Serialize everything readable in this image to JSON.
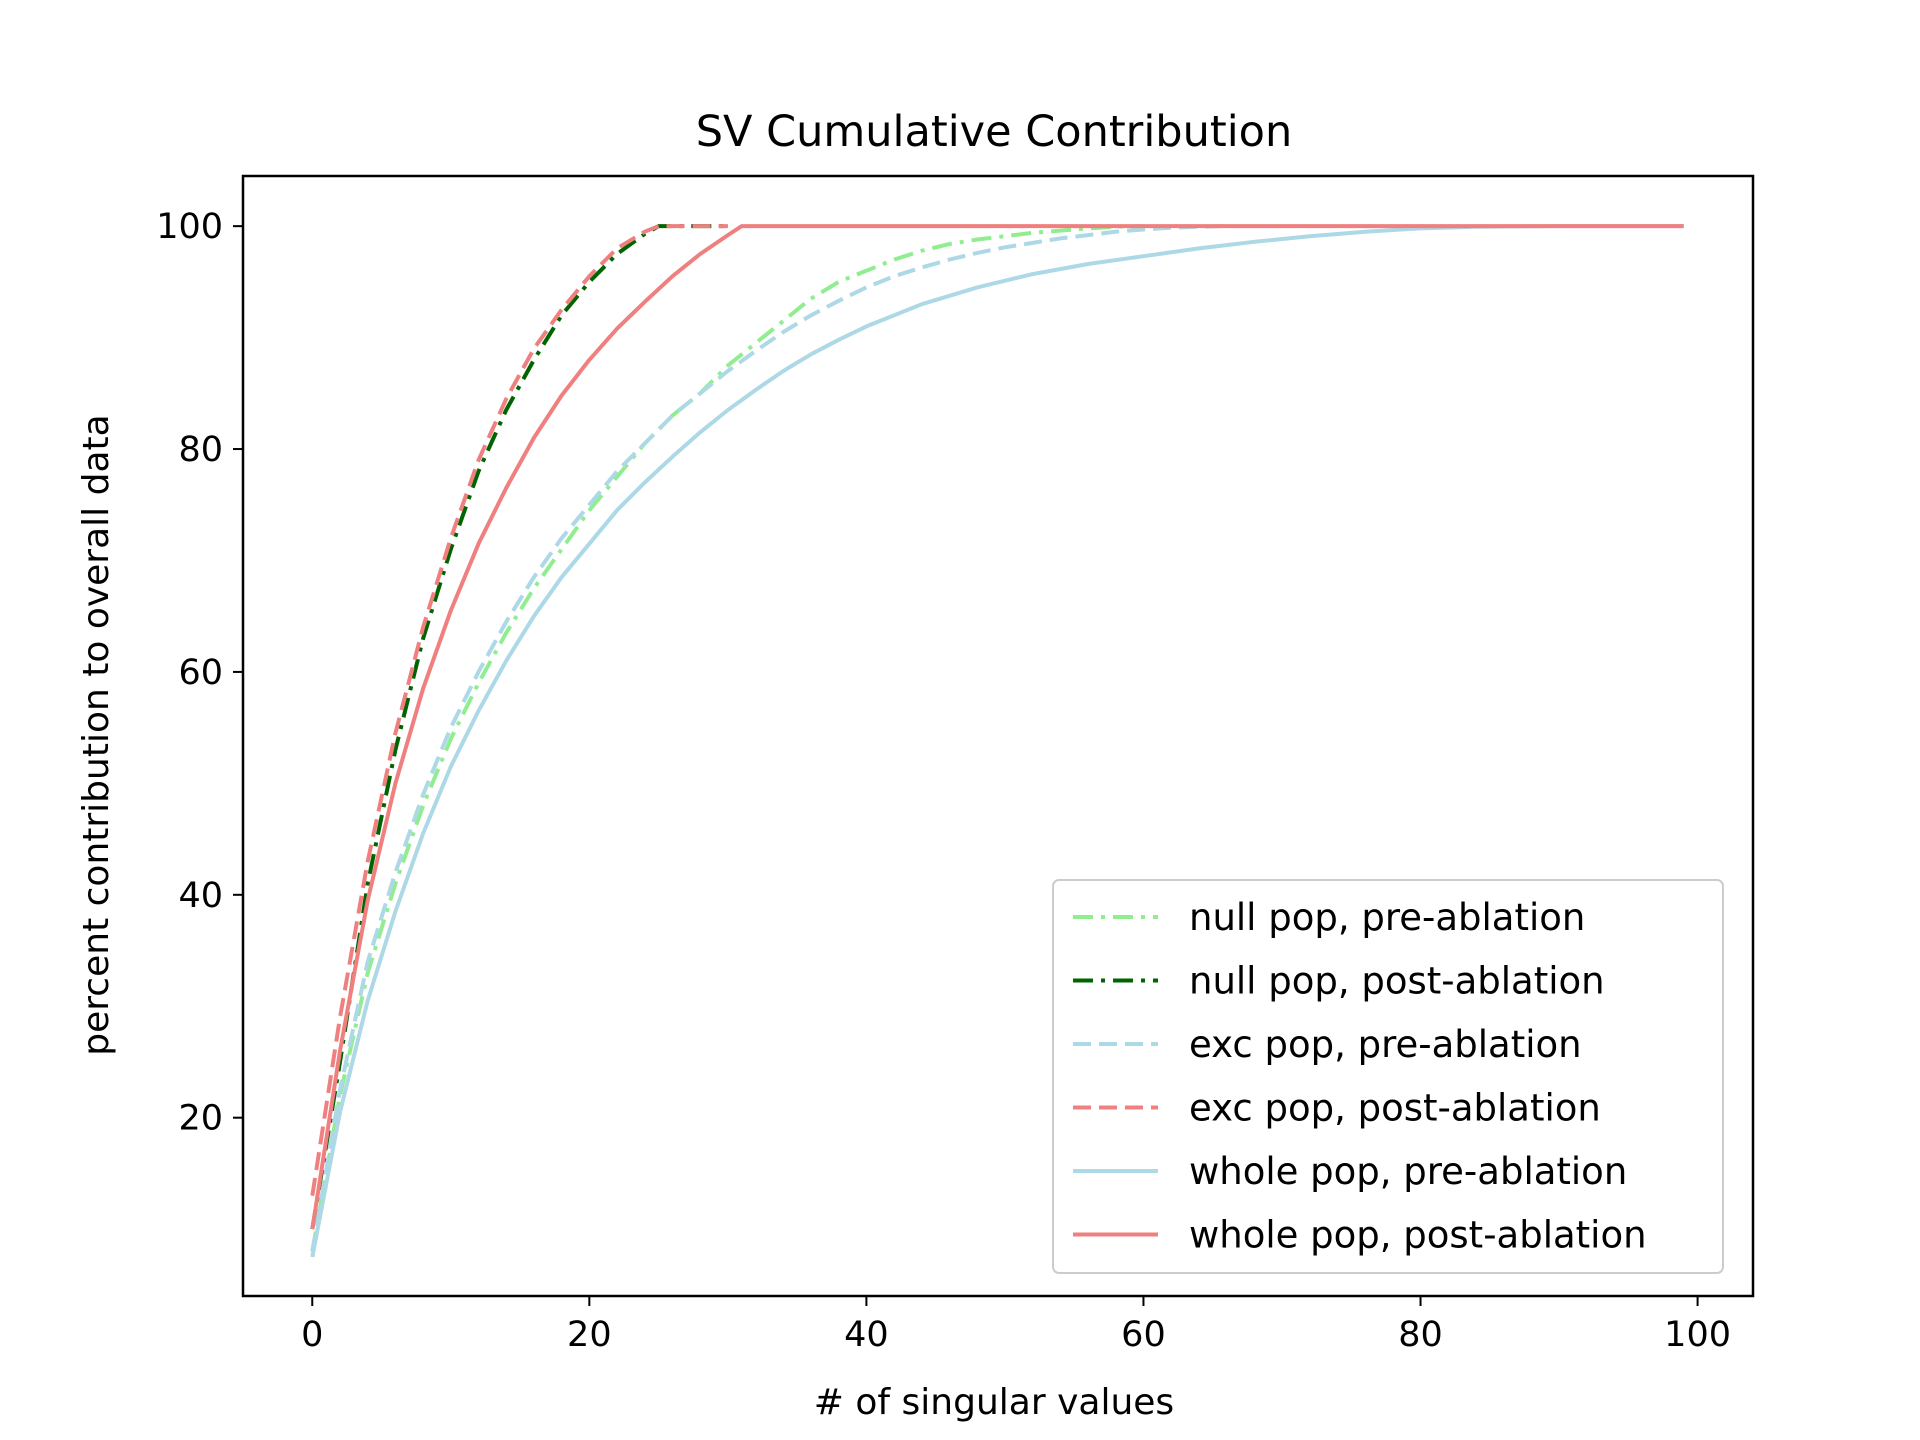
{
  "chart_data": {
    "type": "line",
    "title": "SV Cumulative Contribution",
    "xlabel": "# of singular values",
    "ylabel": "percent contribution to overall data",
    "xlim": [
      -5,
      104
    ],
    "ylim": [
      4,
      104.5
    ],
    "xticks": [
      0,
      20,
      40,
      60,
      80,
      100
    ],
    "yticks": [
      20,
      40,
      60,
      80,
      100
    ],
    "grid": false,
    "legend_position": "lower-right",
    "series": [
      {
        "name": "null pop, pre-ablation",
        "color": "#90ee90",
        "dash": "dashdot",
        "x": [
          0,
          2,
          4,
          6,
          8,
          10,
          12,
          14,
          16,
          18,
          20,
          22,
          24,
          26,
          28,
          30,
          32,
          34,
          36,
          38,
          40,
          42,
          44,
          46,
          48,
          50,
          52,
          54,
          56,
          58,
          60
        ],
        "y": [
          8,
          22,
          33,
          41,
          48,
          54,
          59,
          63.5,
          67.5,
          71,
          74.5,
          77.5,
          80.5,
          83,
          85,
          87.5,
          89.5,
          91.5,
          93.5,
          95,
          96,
          97,
          97.8,
          98.4,
          98.8,
          99.1,
          99.4,
          99.6,
          99.8,
          99.95,
          100
        ]
      },
      {
        "name": "null pop, post-ablation",
        "color": "#006400",
        "dash": "dashdot",
        "x": [
          0,
          2,
          4,
          6,
          8,
          10,
          12,
          14,
          16,
          18,
          20,
          22,
          24,
          25,
          26,
          28,
          30
        ],
        "y": [
          10,
          25,
          41,
          53,
          63,
          71,
          78,
          83.5,
          88,
          92,
          95,
          97.5,
          99.3,
          100,
          100,
          100,
          100
        ]
      },
      {
        "name": "exc pop, pre-ablation",
        "color": "#add8e6",
        "dash": "dashed",
        "x": [
          0,
          2,
          4,
          6,
          8,
          10,
          12,
          14,
          16,
          18,
          20,
          22,
          24,
          26,
          28,
          30,
          32,
          34,
          36,
          38,
          40,
          42,
          44,
          46,
          48,
          50,
          52,
          54,
          56,
          58,
          60,
          62,
          64,
          66
        ],
        "y": [
          8,
          22.5,
          34,
          42,
          49,
          55,
          60,
          64.5,
          68.5,
          72,
          75,
          78,
          80.5,
          83,
          85,
          87,
          88.8,
          90.5,
          92,
          93.3,
          94.5,
          95.5,
          96.3,
          97,
          97.6,
          98.1,
          98.5,
          98.9,
          99.2,
          99.5,
          99.7,
          99.85,
          99.95,
          100
        ]
      },
      {
        "name": "exc pop, post-ablation",
        "color": "#f08080",
        "dash": "dashed",
        "x": [
          0,
          2,
          4,
          6,
          8,
          10,
          12,
          14,
          16,
          18,
          20,
          22,
          24,
          25,
          26,
          28,
          30
        ],
        "y": [
          13,
          29,
          43,
          54.5,
          64,
          72,
          79,
          84.5,
          89,
          92.5,
          95.5,
          98,
          99.5,
          100,
          100,
          100,
          100
        ]
      },
      {
        "name": "whole pop, pre-ablation",
        "color": "#add8e6",
        "dash": "solid",
        "x": [
          0,
          2,
          4,
          6,
          8,
          10,
          12,
          14,
          16,
          18,
          20,
          22,
          24,
          26,
          28,
          30,
          32,
          34,
          36,
          38,
          40,
          44,
          48,
          52,
          56,
          60,
          64,
          68,
          72,
          76,
          80,
          84,
          90,
          99
        ],
        "y": [
          7.5,
          20.5,
          30.5,
          38.5,
          45.5,
          51.5,
          56.5,
          61,
          65,
          68.5,
          71.5,
          74.5,
          77,
          79.3,
          81.5,
          83.5,
          85.3,
          87,
          88.5,
          89.8,
          91,
          93,
          94.5,
          95.7,
          96.6,
          97.3,
          98,
          98.6,
          99.1,
          99.5,
          99.8,
          99.95,
          100,
          100
        ]
      },
      {
        "name": "whole pop, post-ablation",
        "color": "#f08080",
        "dash": "solid",
        "x": [
          0,
          2,
          4,
          6,
          8,
          10,
          12,
          14,
          16,
          18,
          20,
          22,
          24,
          26,
          28,
          30,
          31,
          40,
          60,
          80,
          99
        ],
        "y": [
          10,
          26,
          39.5,
          50,
          58.5,
          65.5,
          71.5,
          76.5,
          81,
          84.8,
          88,
          90.8,
          93.2,
          95.5,
          97.5,
          99.2,
          100,
          100,
          100,
          100,
          100
        ]
      }
    ]
  }
}
